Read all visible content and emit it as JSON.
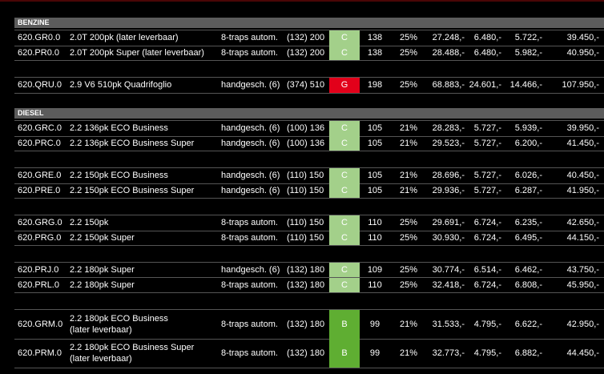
{
  "sections": [
    {
      "title": "BENZINE",
      "groups": [
        [
          {
            "code": "620.GR0.0",
            "description": [
              "2.0T 200pk (later leverbaar)"
            ],
            "transmission": "8-traps autom.",
            "power": "(132) 200",
            "label": "C",
            "co2": "138",
            "percent": "25%",
            "price": "27.248,-",
            "tax1": "6.480,-",
            "tax2": "5.722,-",
            "total": "39.450,-"
          },
          {
            "code": "620.PR0.0",
            "description": [
              "2.0T 200pk Super (later leverbaar)"
            ],
            "transmission": "8-traps autom.",
            "power": "(132) 200",
            "label": "C",
            "co2": "138",
            "percent": "25%",
            "price": "28.488,-",
            "tax1": "6.480,-",
            "tax2": "5.982,-",
            "total": "40.950,-"
          }
        ],
        [
          {
            "code": "620.QRU.0",
            "description": [
              "2.9 V6 510pk Quadrifoglio"
            ],
            "transmission": "handgesch. (6)",
            "power": "(374) 510",
            "label": "G",
            "co2": "198",
            "percent": "25%",
            "price": "68.883,-",
            "tax1": "24.601,-",
            "tax2": "14.466,-",
            "total": "107.950,-"
          }
        ]
      ]
    },
    {
      "title": "DIESEL",
      "groups": [
        [
          {
            "code": "620.GRC.0",
            "description": [
              "2.2 136pk ECO Business"
            ],
            "transmission": "handgesch. (6)",
            "power": "(100) 136",
            "label": "C",
            "co2": "105",
            "percent": "21%",
            "price": "28.283,-",
            "tax1": "5.727,-",
            "tax2": "5.939,-",
            "total": "39.950,-"
          },
          {
            "code": "620.PRC.0",
            "description": [
              "2.2 136pk ECO Business Super"
            ],
            "transmission": "handgesch. (6)",
            "power": "(100) 136",
            "label": "C",
            "co2": "105",
            "percent": "21%",
            "price": "29.523,-",
            "tax1": "5.727,-",
            "tax2": "6.200,-",
            "total": "41.450,-"
          }
        ],
        [
          {
            "code": "620.GRE.0",
            "description": [
              "2.2 150pk ECO Business"
            ],
            "transmission": "handgesch. (6)",
            "power": "(110) 150",
            "label": "C",
            "co2": "105",
            "percent": "21%",
            "price": "28.696,-",
            "tax1": "5.727,-",
            "tax2": "6.026,-",
            "total": "40.450,-"
          },
          {
            "code": "620.PRE.0",
            "description": [
              "2.2 150pk ECO Business Super"
            ],
            "transmission": "handgesch. (6)",
            "power": "(110) 150",
            "label": "C",
            "co2": "105",
            "percent": "21%",
            "price": "29.936,-",
            "tax1": "5.727,-",
            "tax2": "6.287,-",
            "total": "41.950,-"
          }
        ],
        [
          {
            "code": "620.GRG.0",
            "description": [
              "2.2 150pk"
            ],
            "transmission": "8-traps autom.",
            "power": "(110) 150",
            "label": "C",
            "co2": "110",
            "percent": "25%",
            "price": "29.691,-",
            "tax1": "6.724,-",
            "tax2": "6.235,-",
            "total": "42.650,-"
          },
          {
            "code": "620.PRG.0",
            "description": [
              "2.2 150pk Super"
            ],
            "transmission": "8-traps autom.",
            "power": "(110) 150",
            "label": "C",
            "co2": "110",
            "percent": "25%",
            "price": "30.930,-",
            "tax1": "6.724,-",
            "tax2": "6.495,-",
            "total": "44.150,-"
          }
        ],
        [
          {
            "code": "620.PRJ.0",
            "description": [
              "2.2 180pk Super"
            ],
            "transmission": "handgesch. (6)",
            "power": "(132) 180",
            "label": "C",
            "co2": "109",
            "percent": "25%",
            "price": "30.774,-",
            "tax1": "6.514,-",
            "tax2": "6.462,-",
            "total": "43.750,-"
          },
          {
            "code": "620.PRL.0",
            "description": [
              "2.2 180pk Super"
            ],
            "transmission": "8-traps autom.",
            "power": "(132) 180",
            "label": "C",
            "co2": "110",
            "percent": "25%",
            "price": "32.418,-",
            "tax1": "6.724,-",
            "tax2": "6.808,-",
            "total": "45.950,-"
          }
        ],
        [
          {
            "code": "620.GRM.0",
            "description": [
              "2.2 180pk ECO Business",
              "(later leverbaar)"
            ],
            "transmission": "8-traps autom.",
            "power": "(132) 180",
            "label": "B",
            "co2": "99",
            "percent": "21%",
            "price": "31.533,-",
            "tax1": "4.795,-",
            "tax2": "6.622,-",
            "total": "42.950,-"
          },
          {
            "code": "620.PRM.0",
            "description": [
              "2.2 180pk ECO Business Super",
              "(later leverbaar)"
            ],
            "transmission": "8-traps autom.",
            "power": "(132) 180",
            "label": "B",
            "co2": "99",
            "percent": "21%",
            "price": "32.773,-",
            "tax1": "4.795,-",
            "tax2": "6.882,-",
            "total": "44.450,-"
          }
        ]
      ]
    }
  ]
}
